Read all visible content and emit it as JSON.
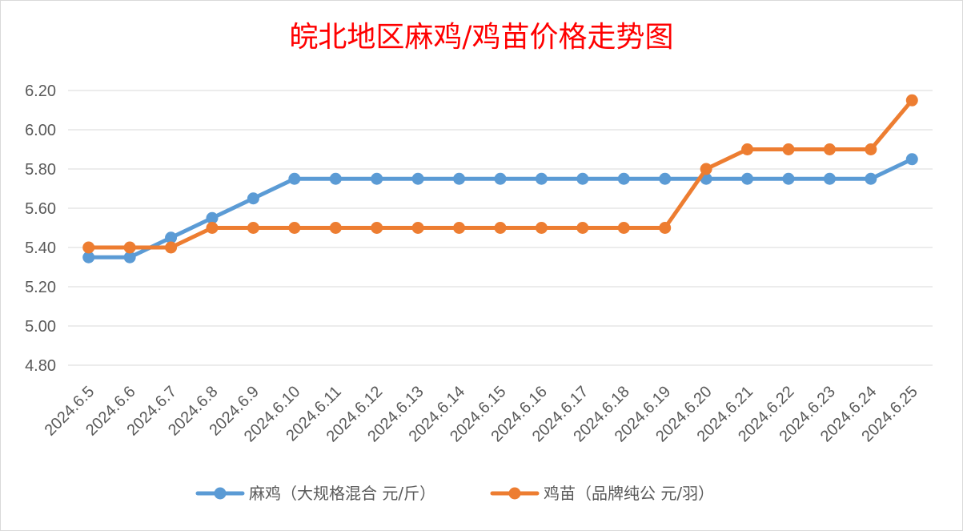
{
  "chart_data": {
    "type": "line",
    "title": "皖北地区麻鸡/鸡苗价格走势图",
    "categories": [
      "2024.6.5",
      "2024.6.6",
      "2024.6.7",
      "2024.6.8",
      "2024.6.9",
      "2024.6.10",
      "2024.6.11",
      "2024.6.12",
      "2024.6.13",
      "2024.6.14",
      "2024.6.15",
      "2024.6.16",
      "2024.6.17",
      "2024.6.18",
      "2024.6.19",
      "2024.6.20",
      "2024.6.21",
      "2024.6.22",
      "2024.6.23",
      "2024.6.24",
      "2024.6.25"
    ],
    "series": [
      {
        "name": "麻鸡（大规格混合 元/斤）",
        "color": "#5b9bd5",
        "values": [
          5.35,
          5.35,
          5.45,
          5.55,
          5.65,
          5.75,
          5.75,
          5.75,
          5.75,
          5.75,
          5.75,
          5.75,
          5.75,
          5.75,
          5.75,
          5.75,
          5.75,
          5.75,
          5.75,
          5.75,
          5.85
        ]
      },
      {
        "name": "鸡苗（品牌纯公 元/羽）",
        "color": "#ed7d31",
        "values": [
          5.4,
          5.4,
          5.4,
          5.5,
          5.5,
          5.5,
          5.5,
          5.5,
          5.5,
          5.5,
          5.5,
          5.5,
          5.5,
          5.5,
          5.5,
          5.8,
          5.9,
          5.9,
          5.9,
          5.9,
          6.15
        ]
      }
    ],
    "yticks": [
      "4.80",
      "5.00",
      "5.20",
      "5.40",
      "5.60",
      "5.80",
      "6.00",
      "6.20"
    ],
    "ylim": [
      4.8,
      6.2
    ],
    "grid": true,
    "legend": "bottom"
  }
}
